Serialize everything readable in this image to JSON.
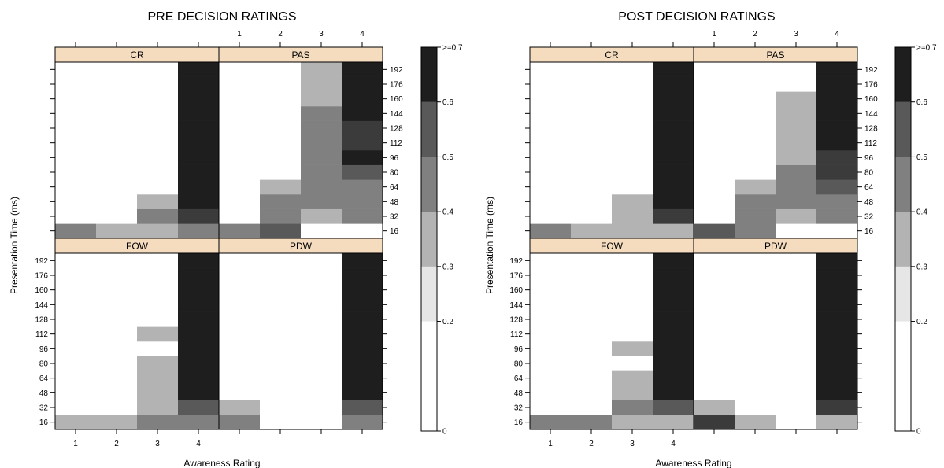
{
  "chart_data": [
    {
      "type": "heatmap",
      "title": "PRE DECISION RATINGS",
      "xlabel": "Awareness Rating",
      "ylabel": "Presentation Time (ms)",
      "x_ticks": [
        "1",
        "2",
        "3",
        "4"
      ],
      "y_ticks": [
        "16",
        "32",
        "48",
        "64",
        "80",
        "96",
        "112",
        "128",
        "144",
        "160",
        "176",
        "192"
      ],
      "colorbar": {
        "ticks": [
          "0",
          "0.2",
          "0.3",
          "0.4",
          "0.5",
          "0.6",
          ">=0.7"
        ],
        "breaks": [
          0,
          0.2,
          0.3,
          0.4,
          0.5,
          0.6,
          0.7
        ],
        "colors": [
          "#ffffff",
          "#e6e6e6",
          "#b3b3b3",
          "#808080",
          "#595959",
          "#3b3b3b",
          "#1e1e1e"
        ]
      },
      "panels": [
        {
          "strip": "CR",
          "cells": [
            [
              0.45,
              0.35,
              0.35,
              0.45
            ],
            [
              0,
              0,
              0.45,
              0.65
            ],
            [
              0,
              0,
              0.35,
              0.75
            ],
            [
              0,
              0,
              0,
              0.75
            ],
            [
              0,
              0,
              0,
              0.75
            ],
            [
              0,
              0,
              0,
              0.75
            ],
            [
              0,
              0,
              0,
              0.75
            ],
            [
              0,
              0,
              0,
              0.75
            ],
            [
              0,
              0,
              0,
              0.75
            ],
            [
              0,
              0,
              0,
              0.75
            ],
            [
              0,
              0,
              0,
              0.75
            ],
            [
              0,
              0,
              0,
              0.75
            ]
          ]
        },
        {
          "strip": "PAS",
          "cells": [
            [
              0.45,
              0.55,
              0,
              0
            ],
            [
              0,
              0.45,
              0.35,
              0.45
            ],
            [
              0,
              0.45,
              0.45,
              0.45
            ],
            [
              0,
              0.35,
              0.45,
              0.45
            ],
            [
              0,
              0,
              0.45,
              0.55
            ],
            [
              0,
              0,
              0.45,
              0.75
            ],
            [
              0,
              0,
              0.45,
              0.65
            ],
            [
              0,
              0,
              0.45,
              0.65
            ],
            [
              0,
              0,
              0.45,
              0.75
            ],
            [
              0,
              0,
              0.35,
              0.75
            ],
            [
              0,
              0,
              0.35,
              0.75
            ],
            [
              0,
              0,
              0.35,
              0.75
            ]
          ]
        },
        {
          "strip": "FOW",
          "cells": [
            [
              0.35,
              0.35,
              0.45,
              0.45
            ],
            [
              0,
              0,
              0.35,
              0.5
            ],
            [
              0,
              0,
              0.35,
              0.75
            ],
            [
              0,
              0,
              0.35,
              0.75
            ],
            [
              0,
              0,
              0.35,
              0.75
            ],
            [
              0,
              0,
              0,
              0.75
            ],
            [
              0,
              0,
              0.35,
              0.75
            ],
            [
              0,
              0,
              0,
              0.75
            ],
            [
              0,
              0,
              0,
              0.75
            ],
            [
              0,
              0,
              0,
              0.75
            ],
            [
              0,
              0,
              0,
              0.75
            ],
            [
              0,
              0,
              0,
              0.75
            ]
          ]
        },
        {
          "strip": "PDW",
          "cells": [
            [
              0.45,
              0,
              0,
              0.45
            ],
            [
              0.35,
              0,
              0,
              0.55
            ],
            [
              0,
              0,
              0,
              0.75
            ],
            [
              0,
              0,
              0,
              0.75
            ],
            [
              0,
              0,
              0,
              0.75
            ],
            [
              0,
              0,
              0,
              0.75
            ],
            [
              0,
              0,
              0,
              0.75
            ],
            [
              0,
              0,
              0,
              0.75
            ],
            [
              0,
              0,
              0,
              0.75
            ],
            [
              0,
              0,
              0,
              0.75
            ],
            [
              0,
              0,
              0,
              0.75
            ],
            [
              0,
              0,
              0,
              0.75
            ]
          ]
        }
      ]
    },
    {
      "type": "heatmap",
      "title": "POST DECISION RATINGS",
      "xlabel": "Awareness Rating",
      "ylabel": "Presentation Time (ms)",
      "x_ticks": [
        "1",
        "2",
        "3",
        "4"
      ],
      "y_ticks": [
        "16",
        "32",
        "48",
        "64",
        "80",
        "96",
        "112",
        "128",
        "144",
        "160",
        "176",
        "192"
      ],
      "colorbar": {
        "ticks": [
          "0",
          "0.2",
          "0.3",
          "0.4",
          "0.5",
          "0.6",
          ">=0.7"
        ],
        "breaks": [
          0,
          0.2,
          0.3,
          0.4,
          0.5,
          0.6,
          0.7
        ],
        "colors": [
          "#ffffff",
          "#e6e6e6",
          "#b3b3b3",
          "#808080",
          "#595959",
          "#3b3b3b",
          "#1e1e1e"
        ]
      },
      "panels": [
        {
          "strip": "CR",
          "cells": [
            [
              0.45,
              0.35,
              0.35,
              0.35
            ],
            [
              0,
              0,
              0.35,
              0.65
            ],
            [
              0,
              0,
              0.35,
              0.75
            ],
            [
              0,
              0,
              0,
              0.75
            ],
            [
              0,
              0,
              0,
              0.75
            ],
            [
              0,
              0,
              0,
              0.75
            ],
            [
              0,
              0,
              0,
              0.75
            ],
            [
              0,
              0,
              0,
              0.75
            ],
            [
              0,
              0,
              0,
              0.75
            ],
            [
              0,
              0,
              0,
              0.75
            ],
            [
              0,
              0,
              0,
              0.75
            ],
            [
              0,
              0,
              0,
              0.75
            ]
          ]
        },
        {
          "strip": "PAS",
          "cells": [
            [
              0.55,
              0.45,
              0,
              0
            ],
            [
              0,
              0.45,
              0.35,
              0.45
            ],
            [
              0,
              0.45,
              0.45,
              0.45
            ],
            [
              0,
              0.35,
              0.45,
              0.55
            ],
            [
              0,
              0,
              0.45,
              0.65
            ],
            [
              0,
              0,
              0.35,
              0.65
            ],
            [
              0,
              0,
              0.35,
              0.75
            ],
            [
              0,
              0,
              0.35,
              0.75
            ],
            [
              0,
              0,
              0.35,
              0.75
            ],
            [
              0,
              0,
              0.35,
              0.75
            ],
            [
              0,
              0,
              0,
              0.75
            ],
            [
              0,
              0,
              0,
              0.75
            ]
          ]
        },
        {
          "strip": "FOW",
          "cells": [
            [
              0.45,
              0.45,
              0.35,
              0.35
            ],
            [
              0,
              0,
              0.45,
              0.5
            ],
            [
              0,
              0,
              0.35,
              0.75
            ],
            [
              0,
              0,
              0.35,
              0.75
            ],
            [
              0,
              0,
              0,
              0.75
            ],
            [
              0,
              0,
              0.35,
              0.75
            ],
            [
              0,
              0,
              0,
              0.75
            ],
            [
              0,
              0,
              0,
              0.75
            ],
            [
              0,
              0,
              0,
              0.75
            ],
            [
              0,
              0,
              0,
              0.75
            ],
            [
              0,
              0,
              0,
              0.75
            ],
            [
              0,
              0,
              0,
              0.75
            ]
          ]
        },
        {
          "strip": "PDW",
          "cells": [
            [
              0.65,
              0.35,
              0,
              0.35
            ],
            [
              0.35,
              0,
              0,
              0.65
            ],
            [
              0,
              0,
              0,
              0.75
            ],
            [
              0,
              0,
              0,
              0.75
            ],
            [
              0,
              0,
              0,
              0.75
            ],
            [
              0,
              0,
              0,
              0.75
            ],
            [
              0,
              0,
              0,
              0.75
            ],
            [
              0,
              0,
              0,
              0.75
            ],
            [
              0,
              0,
              0,
              0.75
            ],
            [
              0,
              0,
              0,
              0.75
            ],
            [
              0,
              0,
              0,
              0.75
            ],
            [
              0,
              0,
              0,
              0.75
            ]
          ]
        }
      ]
    }
  ],
  "strip_color": "#f5dcbf"
}
